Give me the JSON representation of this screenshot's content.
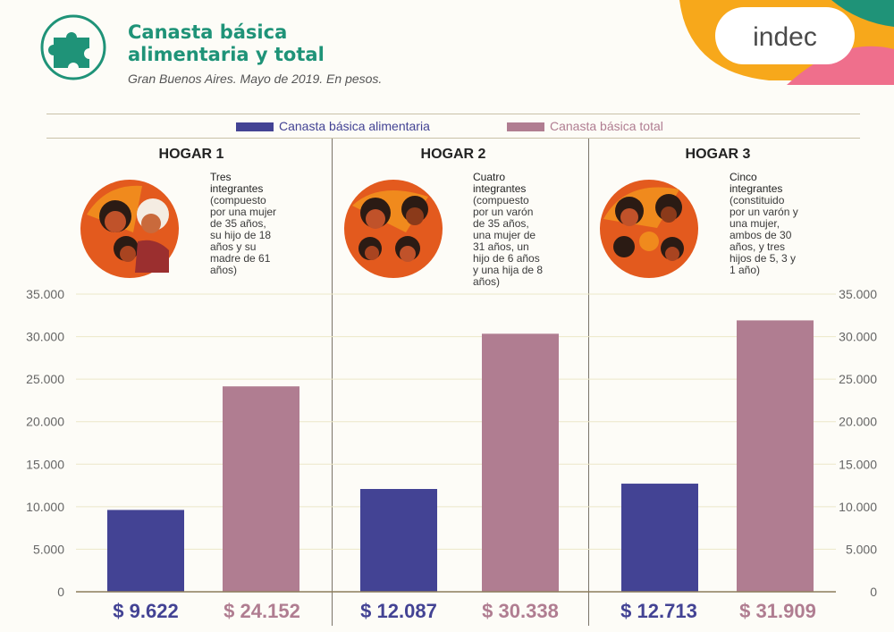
{
  "header": {
    "title_line1": "Canasta básica",
    "title_line2": "alimentaria y total",
    "subtitle": "Gran Buenos Aires. Mayo de 2019. En pesos.",
    "brand": "indec"
  },
  "legend": [
    {
      "name": "Canasta básica alimentaria",
      "color": "#434394"
    },
    {
      "name": "Canasta básica total",
      "color": "#b07d91"
    }
  ],
  "households": [
    {
      "title": "HOGAR 1",
      "desc_head": [
        "Tres",
        "integrantes"
      ],
      "desc_body": [
        "(compuesto",
        "por una mujer",
        "de 35 años,",
        "su hijo de 18",
        "años y su",
        "madre de 61",
        "años)"
      ],
      "label_food": "$ 9.622",
      "label_total": "$ 24.152"
    },
    {
      "title": "HOGAR 2",
      "desc_head": [
        "Cuatro",
        "integrantes"
      ],
      "desc_body": [
        "(compuesto",
        "por un varón",
        "de 35 años,",
        "una mujer de",
        "31 años, un",
        "hijo de 6 años",
        "y una hija de 8",
        "años)"
      ],
      "label_food": "$ 12.087",
      "label_total": "$ 30.338"
    },
    {
      "title": "HOGAR 3",
      "desc_head": [
        "Cinco",
        "integrantes"
      ],
      "desc_body": [
        "(constituido",
        "por un varón y",
        "una mujer,",
        "ambos de 30",
        "años, y tres",
        "hijos de 5, 3 y",
        "1 año)"
      ],
      "label_food": "$ 12.713",
      "label_total": "$ 31.909"
    }
  ],
  "chart_data": {
    "type": "bar",
    "title": "Canasta básica alimentaria y total",
    "categories": [
      "HOGAR 1",
      "HOGAR 2",
      "HOGAR 3"
    ],
    "series": [
      {
        "name": "Canasta básica alimentaria",
        "values": [
          9622,
          12087,
          12713
        ]
      },
      {
        "name": "Canasta básica total",
        "values": [
          24152,
          30338,
          31909
        ]
      }
    ],
    "ylim": [
      0,
      35000
    ],
    "yticks": [
      0,
      5000,
      10000,
      15000,
      20000,
      25000,
      30000,
      35000
    ],
    "ytick_labels": [
      "0",
      "5.000",
      "10.000",
      "15.000",
      "20.000",
      "25.000",
      "30.000",
      "35.000"
    ],
    "xlabel": "",
    "ylabel": "",
    "grid": true,
    "legend": "top-center"
  }
}
